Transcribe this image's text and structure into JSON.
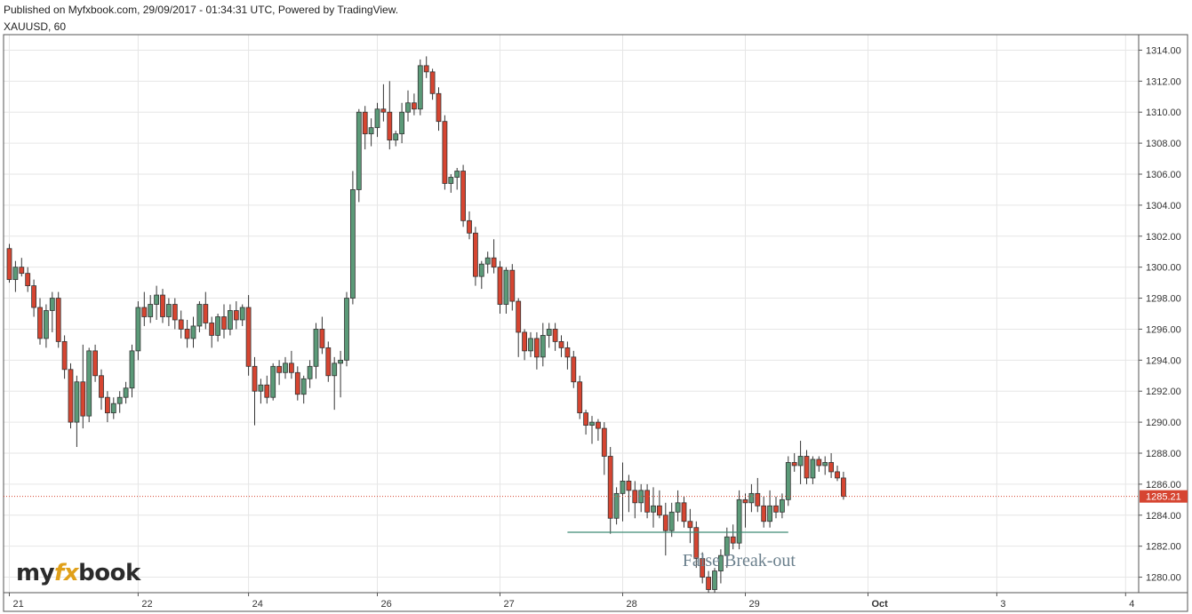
{
  "header": {
    "published": "Published on Myfxbook.com, 29/09/2017 - 01:34:31 UTC, Powered by TradingView.",
    "symbol": "XAUUSD, 60"
  },
  "logo": {
    "pre": "my",
    "fx": "fx",
    "post": "book"
  },
  "colors": {
    "up": "#5b9a78",
    "down": "#d64531",
    "outline": "#333333",
    "grid": "#e6e6e6",
    "last_price_bg": "#d64531",
    "level_line": "#3f8a73"
  },
  "chart_data": {
    "type": "candlestick",
    "symbol": "XAUUSD",
    "timeframe": "60",
    "ylim": [
      1279,
      1315
    ],
    "y_ticks": [
      "1314.00",
      "1312.00",
      "1310.00",
      "1308.00",
      "1306.00",
      "1304.00",
      "1302.00",
      "1300.00",
      "1298.00",
      "1296.00",
      "1294.00",
      "1292.00",
      "1290.00",
      "1288.00",
      "1286.00",
      "1284.00",
      "1282.00",
      "1280.00"
    ],
    "x_ticks": [
      {
        "label": "21",
        "bar": 0,
        "bold": false
      },
      {
        "label": "22",
        "bar": 21,
        "bold": false
      },
      {
        "label": "24",
        "bar": 39,
        "bold": false
      },
      {
        "label": "26",
        "bar": 60,
        "bold": false
      },
      {
        "label": "27",
        "bar": 80,
        "bold": false
      },
      {
        "label": "28",
        "bar": 100,
        "bold": false
      },
      {
        "label": "29",
        "bar": 120,
        "bold": false
      },
      {
        "label": "Oct",
        "bar": 140,
        "bold": true
      },
      {
        "label": "3",
        "bar": 161,
        "bold": false
      },
      {
        "label": "4",
        "bar": 182,
        "bold": false
      }
    ],
    "last_price": {
      "value": 1285.21,
      "label": "1285.21"
    },
    "annotation": {
      "text": "False Break-out",
      "value": 1282.9,
      "from_bar": 91,
      "to_bar": 127
    },
    "candles": [
      [
        1301.2,
        1301.5,
        1299.0,
        1299.2
      ],
      [
        1299.2,
        1300.4,
        1298.4,
        1300.0
      ],
      [
        1300.0,
        1300.6,
        1299.4,
        1299.6
      ],
      [
        1299.6,
        1300.0,
        1298.4,
        1298.8
      ],
      [
        1298.8,
        1299.2,
        1296.8,
        1297.4
      ],
      [
        1297.4,
        1298.0,
        1295.0,
        1295.4
      ],
      [
        1295.4,
        1297.6,
        1294.8,
        1297.2
      ],
      [
        1297.2,
        1298.4,
        1295.8,
        1298.0
      ],
      [
        1298.0,
        1298.4,
        1294.8,
        1295.2
      ],
      [
        1295.2,
        1295.6,
        1292.8,
        1293.4
      ],
      [
        1293.4,
        1293.8,
        1289.6,
        1290.0
      ],
      [
        1290.0,
        1293.0,
        1288.4,
        1292.6
      ],
      [
        1292.6,
        1295.0,
        1289.6,
        1290.4
      ],
      [
        1290.4,
        1294.8,
        1290.0,
        1294.6
      ],
      [
        1294.6,
        1295.0,
        1292.6,
        1293.0
      ],
      [
        1293.0,
        1293.4,
        1290.8,
        1291.6
      ],
      [
        1291.6,
        1292.0,
        1290.0,
        1290.6
      ],
      [
        1290.6,
        1291.6,
        1290.2,
        1291.2
      ],
      [
        1291.2,
        1292.0,
        1290.6,
        1291.6
      ],
      [
        1291.6,
        1292.6,
        1291.2,
        1292.2
      ],
      [
        1292.2,
        1295.0,
        1291.6,
        1294.6
      ],
      [
        1294.6,
        1297.8,
        1294.0,
        1297.4
      ],
      [
        1297.4,
        1298.4,
        1296.2,
        1296.8
      ],
      [
        1296.8,
        1298.2,
        1296.4,
        1297.6
      ],
      [
        1297.6,
        1298.8,
        1296.6,
        1298.2
      ],
      [
        1298.2,
        1298.6,
        1296.4,
        1296.8
      ],
      [
        1296.8,
        1298.0,
        1296.2,
        1297.6
      ],
      [
        1297.6,
        1298.0,
        1296.0,
        1296.6
      ],
      [
        1296.6,
        1297.2,
        1295.4,
        1296.0
      ],
      [
        1296.0,
        1296.6,
        1294.8,
        1295.4
      ],
      [
        1295.4,
        1296.8,
        1294.8,
        1296.2
      ],
      [
        1296.2,
        1297.8,
        1295.8,
        1297.6
      ],
      [
        1297.6,
        1298.4,
        1296.0,
        1296.4
      ],
      [
        1296.4,
        1296.8,
        1294.8,
        1295.6
      ],
      [
        1295.6,
        1297.0,
        1295.2,
        1296.8
      ],
      [
        1296.8,
        1297.6,
        1295.4,
        1296.0
      ],
      [
        1296.0,
        1297.6,
        1295.6,
        1297.2
      ],
      [
        1297.2,
        1297.8,
        1296.0,
        1296.6
      ],
      [
        1296.6,
        1297.6,
        1296.2,
        1297.4
      ],
      [
        1297.4,
        1298.2,
        1293.0,
        1293.6
      ],
      [
        1293.6,
        1294.2,
        1289.8,
        1292.0
      ],
      [
        1292.0,
        1292.8,
        1291.2,
        1292.4
      ],
      [
        1292.4,
        1293.0,
        1291.2,
        1291.6
      ],
      [
        1291.6,
        1293.8,
        1291.4,
        1293.6
      ],
      [
        1293.6,
        1294.0,
        1292.4,
        1293.2
      ],
      [
        1293.2,
        1294.2,
        1292.8,
        1293.8
      ],
      [
        1293.8,
        1294.6,
        1292.8,
        1293.2
      ],
      [
        1293.2,
        1293.6,
        1291.4,
        1291.8
      ],
      [
        1291.8,
        1293.0,
        1291.2,
        1292.8
      ],
      [
        1292.8,
        1294.0,
        1292.2,
        1293.6
      ],
      [
        1293.6,
        1296.4,
        1292.8,
        1296.0
      ],
      [
        1296.0,
        1296.8,
        1294.4,
        1294.8
      ],
      [
        1294.8,
        1295.2,
        1292.6,
        1293.0
      ],
      [
        1293.0,
        1294.2,
        1290.8,
        1293.8
      ],
      [
        1293.8,
        1294.6,
        1291.6,
        1294.0
      ],
      [
        1294.0,
        1298.4,
        1293.6,
        1298.0
      ],
      [
        1298.0,
        1306.2,
        1297.6,
        1305.0
      ],
      [
        1305.0,
        1310.2,
        1304.2,
        1310.0
      ],
      [
        1310.0,
        1310.4,
        1307.6,
        1308.6
      ],
      [
        1308.6,
        1309.6,
        1307.8,
        1309.0
      ],
      [
        1309.0,
        1310.6,
        1308.4,
        1310.2
      ],
      [
        1310.2,
        1311.8,
        1309.4,
        1310.0
      ],
      [
        1310.0,
        1312.0,
        1307.6,
        1308.2
      ],
      [
        1308.2,
        1308.8,
        1307.8,
        1308.6
      ],
      [
        1308.6,
        1310.6,
        1308.0,
        1310.0
      ],
      [
        1310.0,
        1311.4,
        1309.4,
        1310.6
      ],
      [
        1310.6,
        1311.2,
        1309.8,
        1310.2
      ],
      [
        1310.2,
        1313.4,
        1309.8,
        1313.0
      ],
      [
        1313.0,
        1313.6,
        1312.2,
        1312.6
      ],
      [
        1312.6,
        1312.8,
        1310.8,
        1311.2
      ],
      [
        1311.2,
        1311.6,
        1308.8,
        1309.4
      ],
      [
        1309.4,
        1309.8,
        1305.0,
        1305.4
      ],
      [
        1305.4,
        1306.0,
        1304.8,
        1305.8
      ],
      [
        1305.8,
        1306.4,
        1305.0,
        1306.2
      ],
      [
        1306.2,
        1306.6,
        1302.6,
        1303.0
      ],
      [
        1303.0,
        1303.6,
        1301.8,
        1302.2
      ],
      [
        1302.2,
        1302.6,
        1298.8,
        1299.4
      ],
      [
        1299.4,
        1300.4,
        1298.6,
        1300.2
      ],
      [
        1300.2,
        1301.0,
        1299.6,
        1300.6
      ],
      [
        1300.6,
        1301.8,
        1299.6,
        1300.0
      ],
      [
        1300.0,
        1300.4,
        1297.0,
        1297.6
      ],
      [
        1297.6,
        1300.0,
        1297.0,
        1299.8
      ],
      [
        1299.8,
        1300.2,
        1297.2,
        1297.8
      ],
      [
        1297.8,
        1298.0,
        1294.2,
        1295.8
      ],
      [
        1295.8,
        1296.0,
        1294.0,
        1294.6
      ],
      [
        1294.6,
        1295.8,
        1294.2,
        1295.4
      ],
      [
        1295.4,
        1295.8,
        1293.4,
        1294.2
      ],
      [
        1294.2,
        1296.4,
        1293.6,
        1295.6
      ],
      [
        1295.6,
        1296.4,
        1294.8,
        1296.0
      ],
      [
        1296.0,
        1296.4,
        1294.6,
        1295.2
      ],
      [
        1295.2,
        1295.6,
        1294.2,
        1294.8
      ],
      [
        1294.8,
        1295.2,
        1293.4,
        1294.2
      ],
      [
        1294.2,
        1294.6,
        1292.2,
        1292.6
      ],
      [
        1292.6,
        1293.0,
        1290.2,
        1290.6
      ],
      [
        1290.6,
        1290.8,
        1289.2,
        1289.8
      ],
      [
        1289.8,
        1290.4,
        1288.6,
        1290.0
      ],
      [
        1290.0,
        1290.2,
        1288.8,
        1289.6
      ],
      [
        1289.6,
        1290.0,
        1286.6,
        1287.8
      ],
      [
        1287.8,
        1288.4,
        1282.8,
        1283.8
      ],
      [
        1283.8,
        1285.8,
        1283.4,
        1285.4
      ],
      [
        1285.4,
        1287.4,
        1283.6,
        1286.2
      ],
      [
        1286.2,
        1286.6,
        1284.2,
        1285.6
      ],
      [
        1285.6,
        1286.2,
        1283.8,
        1284.8
      ],
      [
        1284.8,
        1286.0,
        1284.2,
        1285.6
      ],
      [
        1285.6,
        1286.0,
        1283.8,
        1284.2
      ],
      [
        1284.2,
        1285.8,
        1283.2,
        1284.6
      ],
      [
        1284.6,
        1285.6,
        1283.8,
        1284.0
      ],
      [
        1284.0,
        1284.8,
        1281.4,
        1283.0
      ],
      [
        1283.0,
        1284.8,
        1282.6,
        1284.2
      ],
      [
        1284.2,
        1285.6,
        1283.6,
        1284.8
      ],
      [
        1284.8,
        1285.2,
        1283.2,
        1283.6
      ],
      [
        1283.6,
        1284.4,
        1282.2,
        1283.2
      ],
      [
        1283.2,
        1283.6,
        1280.6,
        1281.2
      ],
      [
        1281.2,
        1281.6,
        1279.6,
        1280.0
      ],
      [
        1280.0,
        1280.4,
        1278.6,
        1279.2
      ],
      [
        1279.2,
        1280.6,
        1278.8,
        1280.4
      ],
      [
        1280.4,
        1281.8,
        1279.6,
        1281.4
      ],
      [
        1281.4,
        1283.2,
        1280.6,
        1282.6
      ],
      [
        1282.6,
        1283.4,
        1281.8,
        1282.2
      ],
      [
        1282.2,
        1285.6,
        1281.8,
        1285.0
      ],
      [
        1285.0,
        1285.4,
        1283.2,
        1284.8
      ],
      [
        1284.8,
        1286.0,
        1284.2,
        1285.4
      ],
      [
        1285.4,
        1286.4,
        1284.2,
        1284.6
      ],
      [
        1284.6,
        1285.2,
        1283.2,
        1283.6
      ],
      [
        1283.6,
        1285.6,
        1283.2,
        1284.6
      ],
      [
        1284.6,
        1285.2,
        1283.8,
        1284.2
      ],
      [
        1284.2,
        1285.4,
        1283.8,
        1285.0
      ],
      [
        1285.0,
        1287.8,
        1284.6,
        1287.4
      ],
      [
        1287.4,
        1288.0,
        1286.8,
        1287.2
      ],
      [
        1287.2,
        1288.8,
        1286.0,
        1287.8
      ],
      [
        1287.8,
        1288.2,
        1286.0,
        1286.4
      ],
      [
        1286.4,
        1287.8,
        1286.0,
        1287.6
      ],
      [
        1287.6,
        1287.8,
        1286.8,
        1287.2
      ],
      [
        1287.2,
        1287.8,
        1286.6,
        1287.4
      ],
      [
        1287.4,
        1288.0,
        1286.4,
        1286.8
      ],
      [
        1286.8,
        1287.2,
        1286.2,
        1286.4
      ],
      [
        1286.4,
        1286.8,
        1285.0,
        1285.21
      ]
    ]
  }
}
